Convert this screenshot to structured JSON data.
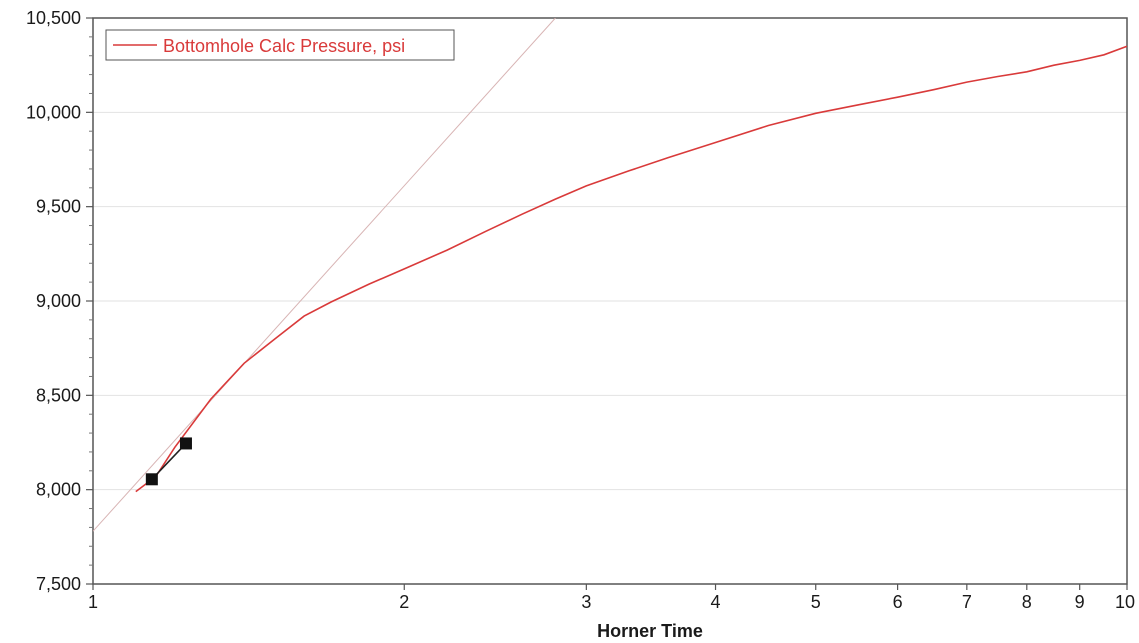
{
  "chart_data": {
    "type": "line",
    "xscale": "log",
    "xlim": [
      1,
      10
    ],
    "ylim": [
      7500,
      10500
    ],
    "grid": true,
    "legend_placement": "top-left",
    "xlabel": "Horner Time",
    "ylabel": "",
    "x_tick_labels": [
      "1",
      "2",
      "3",
      "4",
      "5",
      "6",
      "7",
      "8",
      "9",
      "10"
    ],
    "x_ticks": [
      1,
      2,
      3,
      4,
      5,
      6,
      7,
      8,
      9,
      10
    ],
    "y_tick_labels": [
      "7,500",
      "8,000",
      "8,500",
      "9,000",
      "9,500",
      "10,000",
      "10,500"
    ],
    "y_ticks": [
      7500,
      8000,
      8500,
      9000,
      9500,
      10000,
      10500
    ],
    "series": [
      {
        "name": "Bottomhole Calc Pressure, psi",
        "color": "#d93a3a",
        "x": [
          1.1,
          1.15,
          1.2,
          1.3,
          1.4,
          1.5,
          1.6,
          1.7,
          1.85,
          2.0,
          2.2,
          2.4,
          2.6,
          2.8,
          3.0,
          3.3,
          3.6,
          4.0,
          4.5,
          5.0,
          5.5,
          6.0,
          6.5,
          7.0,
          7.5,
          8.0,
          8.5,
          9.0,
          9.5,
          10.0
        ],
        "y": [
          7990,
          8070,
          8225,
          8480,
          8670,
          8800,
          8920,
          8995,
          9090,
          9170,
          9270,
          9370,
          9460,
          9540,
          9610,
          9690,
          9760,
          9840,
          9930,
          9995,
          10040,
          10080,
          10120,
          10160,
          10190,
          10215,
          10250,
          10275,
          10305,
          10350
        ]
      },
      {
        "name": "",
        "color": "#d8b4b4",
        "style": "straight-line-fit",
        "x": [
          1.0,
          2.8
        ],
        "y": [
          7780,
          10500
        ]
      }
    ],
    "markers": [
      {
        "x": 1.14,
        "y": 8055
      },
      {
        "x": 1.23,
        "y": 8245
      }
    ]
  }
}
